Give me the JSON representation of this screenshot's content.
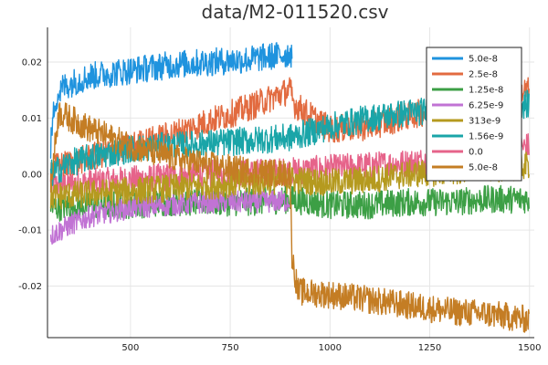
{
  "chart_data": {
    "type": "line",
    "title": "data/M2-011520.csv",
    "xlabel": "",
    "ylabel": "",
    "xlim": [
      292,
      1512
    ],
    "ylim": [
      -0.0292,
      0.0262
    ],
    "x_ticks": [
      500,
      750,
      1000,
      1250,
      1500
    ],
    "x_tick_labels": [
      "500",
      "750",
      "1000",
      "1250",
      "1500"
    ],
    "y_ticks": [
      -0.02,
      -0.01,
      0.0,
      0.01,
      0.02
    ],
    "y_tick_labels": [
      "-0.02",
      "-0.01",
      "0.00",
      "0.01",
      "0.02"
    ],
    "grid": true,
    "legend_position": "top-right",
    "noise_amplitude_note": "",
    "series": [
      {
        "name": "0.0",
        "color": "#e6638a",
        "x": [
          300,
          400,
          500,
          600,
          700,
          800,
          900,
          1000,
          1100,
          1200,
          1300,
          1400,
          1500
        ],
        "y": [
          -0.002,
          -0.0015,
          -0.001,
          -0.0005,
          0.0,
          0.0002,
          0.0005,
          0.001,
          0.0015,
          0.002,
          0.003,
          0.004,
          0.005
        ],
        "band": 0.0025
      },
      {
        "name": "1.25e-8",
        "color": "#3c9f45",
        "x": [
          300,
          400,
          500,
          600,
          700,
          800,
          900,
          1000,
          1100,
          1200,
          1300,
          1400,
          1500
        ],
        "y": [
          -0.006,
          -0.0055,
          -0.0055,
          -0.005,
          -0.005,
          -0.005,
          -0.0045,
          -0.0055,
          -0.0055,
          -0.005,
          -0.005,
          -0.0045,
          -0.0045
        ],
        "band": 0.0025
      },
      {
        "name": "6.25e-9",
        "color": "#c173d4",
        "x": [
          300,
          350,
          400,
          500,
          600,
          700,
          800,
          900
        ],
        "y": [
          -0.011,
          -0.009,
          -0.0075,
          -0.006,
          -0.0055,
          -0.005,
          -0.005,
          -0.0048
        ],
        "band": 0.002
      },
      {
        "name": "313e-9",
        "color": "#b59a1f",
        "x": [
          300,
          400,
          500,
          600,
          700,
          800,
          900,
          1000,
          1100,
          1200,
          1300,
          1400,
          1500
        ],
        "y": [
          -0.004,
          -0.0035,
          -0.003,
          -0.0025,
          -0.002,
          -0.0015,
          -0.001,
          -0.0015,
          -0.001,
          0.0,
          0.0005,
          0.001,
          0.0015
        ],
        "band": 0.0025
      },
      {
        "name": "2.5e-8",
        "color": "#e26b40",
        "x": [
          300,
          400,
          500,
          600,
          700,
          800,
          900,
          910,
          1000,
          1100,
          1200,
          1300,
          1400,
          1500
        ],
        "y": [
          0.001,
          0.003,
          0.005,
          0.007,
          0.0095,
          0.012,
          0.015,
          0.0125,
          0.008,
          0.0085,
          0.0105,
          0.012,
          0.0135,
          0.015
        ],
        "band": 0.0025
      },
      {
        "name": "1.56e-9",
        "color": "#1aa5a8",
        "x": [
          300,
          350,
          400,
          500,
          600,
          700,
          800,
          900,
          1000,
          1100,
          1200,
          1300,
          1400,
          1500
        ],
        "y": [
          0.0,
          0.002,
          0.003,
          0.0045,
          0.005,
          0.0055,
          0.006,
          0.0065,
          0.0085,
          0.01,
          0.011,
          0.0115,
          0.012,
          0.0125
        ],
        "band": 0.0025
      },
      {
        "name": "5.0e-8",
        "color": "#c47d24",
        "x": [
          300,
          320,
          400,
          500,
          600,
          700,
          800,
          900,
          905,
          920,
          1000,
          1100,
          1200,
          1300,
          1400,
          1500
        ],
        "y": [
          -0.002,
          0.011,
          0.008,
          0.005,
          0.003,
          0.0015,
          0.0005,
          0.0,
          -0.015,
          -0.021,
          -0.0215,
          -0.0225,
          -0.0235,
          -0.0245,
          -0.025,
          -0.026
        ],
        "band": 0.0025
      },
      {
        "name": "5.0e-8",
        "color": "#1f93de",
        "x": [
          300,
          310,
          330,
          360,
          400,
          500,
          600,
          700,
          800,
          900,
          905
        ],
        "y": [
          0.005,
          0.013,
          0.0155,
          0.0165,
          0.0175,
          0.0185,
          0.0195,
          0.02,
          0.0205,
          0.0215,
          0.0215
        ],
        "band": 0.0025
      }
    ],
    "legend": [
      {
        "label": "5.0e-8",
        "color": "#1f93de"
      },
      {
        "label": "2.5e-8",
        "color": "#e26b40"
      },
      {
        "label": "1.25e-8",
        "color": "#3c9f45"
      },
      {
        "label": "6.25e-9",
        "color": "#c173d4"
      },
      {
        "label": "313e-9",
        "color": "#b59a1f"
      },
      {
        "label": "1.56e-9",
        "color": "#1aa5a8"
      },
      {
        "label": "0.0",
        "color": "#e6638a"
      },
      {
        "label": "5.0e-8",
        "color": "#c47d24"
      }
    ]
  }
}
